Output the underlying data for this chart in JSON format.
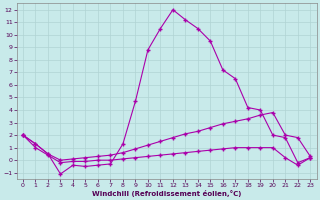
{
  "xlabel": "Windchill (Refroidissement éolien,°C)",
  "background_color": "#c8eaea",
  "grid_color": "#b0d4d4",
  "line_color": "#aa00aa",
  "xlim": [
    -0.5,
    23.5
  ],
  "ylim": [
    -1.5,
    12.5
  ],
  "xticks": [
    0,
    1,
    2,
    3,
    4,
    5,
    6,
    7,
    8,
    9,
    10,
    11,
    12,
    13,
    14,
    15,
    16,
    17,
    18,
    19,
    20,
    21,
    22,
    23
  ],
  "yticks": [
    -1,
    0,
    1,
    2,
    3,
    4,
    5,
    6,
    7,
    8,
    9,
    10,
    11,
    12
  ],
  "line1_x": [
    0,
    1,
    2,
    3,
    4,
    5,
    6,
    7,
    8,
    9,
    10,
    11,
    12,
    13,
    14,
    15,
    16,
    17,
    18,
    19,
    20,
    21,
    22,
    23
  ],
  "line1_y": [
    2.0,
    1.3,
    0.5,
    -1.1,
    -0.4,
    -0.5,
    -0.4,
    -0.3,
    1.3,
    4.7,
    8.8,
    10.5,
    12.0,
    11.2,
    10.5,
    9.5,
    7.2,
    6.5,
    4.2,
    4.0,
    2.0,
    1.8,
    -0.2,
    0.2
  ],
  "line2_x": [
    0,
    1,
    2,
    3,
    4,
    5,
    6,
    7,
    8,
    9,
    10,
    11,
    12,
    13,
    14,
    15,
    16,
    17,
    18,
    19,
    20,
    21,
    22,
    23
  ],
  "line2_y": [
    2.0,
    1.3,
    0.5,
    0.0,
    0.1,
    0.2,
    0.3,
    0.4,
    0.6,
    0.9,
    1.2,
    1.5,
    1.8,
    2.1,
    2.3,
    2.6,
    2.9,
    3.1,
    3.3,
    3.6,
    3.8,
    2.0,
    1.8,
    0.3
  ],
  "line3_x": [
    0,
    1,
    2,
    3,
    4,
    5,
    6,
    7,
    8,
    9,
    10,
    11,
    12,
    13,
    14,
    15,
    16,
    17,
    18,
    19,
    20,
    21,
    22,
    23
  ],
  "line3_y": [
    2.0,
    1.0,
    0.4,
    -0.2,
    -0.1,
    -0.1,
    0.0,
    0.0,
    0.1,
    0.2,
    0.3,
    0.4,
    0.5,
    0.6,
    0.7,
    0.8,
    0.9,
    1.0,
    1.0,
    1.0,
    1.0,
    0.2,
    -0.4,
    0.2
  ],
  "figsize": [
    3.2,
    2.0
  ],
  "dpi": 100
}
